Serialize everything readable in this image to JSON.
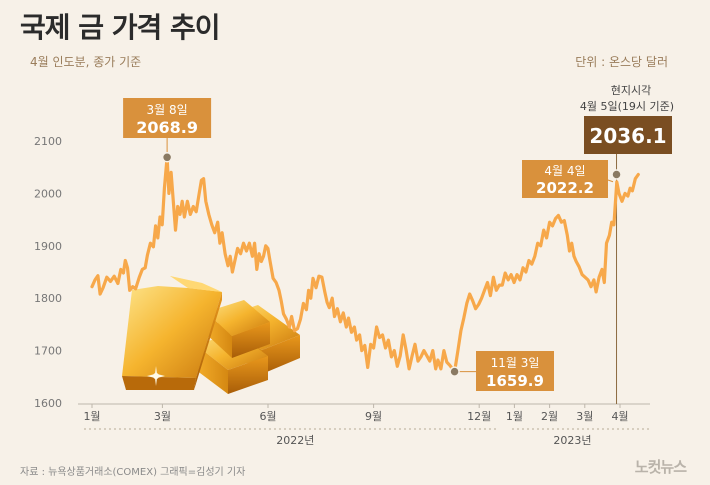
{
  "header": {
    "title": "국제 금 가격 추이",
    "subtitle": "4월 인도분, 종가 기준",
    "unit": "단위 : 온스당 달러"
  },
  "footer": {
    "source": "자료 : 뉴욕상품거래소(COMEX)   그래픽=김성기 기자",
    "logo": "노컷뉴스"
  },
  "colors": {
    "line": "#f7a84a",
    "annotation": "#d9913c",
    "annotation_dark": "#7a4e22",
    "grid": "#cfc8bd",
    "background": "#f7f1e8"
  },
  "chart_data": {
    "type": "line",
    "title": "국제 금 가격 추이",
    "ylim": [
      1600,
      2100
    ],
    "yticks": [
      1600,
      1700,
      1800,
      1900,
      2000,
      2100
    ],
    "grid": false,
    "x_tick_labels": [
      {
        "label": "1월",
        "t": 0.0
      },
      {
        "label": "3월",
        "t": 0.1905
      },
      {
        "label": "6월",
        "t": 0.4762
      },
      {
        "label": "9월",
        "t": 0.7619
      },
      {
        "label": "12월",
        "t": 1.0476
      },
      {
        "label": "1월",
        "t": 1.1429
      },
      {
        "label": "2월",
        "t": 1.2381
      },
      {
        "label": "3월",
        "t": 1.3333
      },
      {
        "label": "4월",
        "t": 1.4286
      }
    ],
    "year_labels": [
      {
        "label": "2022년",
        "t": 0.55
      },
      {
        "label": "2023년",
        "t": 1.3
      }
    ],
    "annotations": [
      {
        "label": "3월 8일",
        "value": "2068.9",
        "t": 0.2032,
        "y": 2068.9,
        "style": "above"
      },
      {
        "label": "11월 3일",
        "value": "1659.9",
        "t": 0.981,
        "y": 1659.9,
        "style": "below"
      },
      {
        "label": "4월 4일",
        "value": "2022.2",
        "t": 1.4205,
        "y": 2022.2,
        "style": "left"
      },
      {
        "label": "현지시각",
        "label2": "4월 5일(19시 기준)",
        "value": "2036.1",
        "t": 1.43,
        "y": 2036.1,
        "style": "top-right"
      }
    ],
    "series": [
      {
        "values": [
          [
            0.0,
            1822
          ],
          [
            0.008,
            1835
          ],
          [
            0.016,
            1843
          ],
          [
            0.022,
            1808
          ],
          [
            0.03,
            1820
          ],
          [
            0.04,
            1840
          ],
          [
            0.05,
            1832
          ],
          [
            0.06,
            1842
          ],
          [
            0.07,
            1828
          ],
          [
            0.078,
            1855
          ],
          [
            0.085,
            1848
          ],
          [
            0.09,
            1872
          ],
          [
            0.096,
            1858
          ],
          [
            0.102,
            1815
          ],
          [
            0.11,
            1822
          ],
          [
            0.118,
            1818
          ],
          [
            0.128,
            1840
          ],
          [
            0.136,
            1855
          ],
          [
            0.144,
            1858
          ],
          [
            0.15,
            1882
          ],
          [
            0.158,
            1905
          ],
          [
            0.166,
            1898
          ],
          [
            0.172,
            1938
          ],
          [
            0.178,
            1915
          ],
          [
            0.184,
            1955
          ],
          [
            0.19,
            1940
          ],
          [
            0.196,
            2010
          ],
          [
            0.2032,
            2069
          ],
          [
            0.208,
            2000
          ],
          [
            0.214,
            2040
          ],
          [
            0.22,
            1985
          ],
          [
            0.226,
            1930
          ],
          [
            0.232,
            1975
          ],
          [
            0.238,
            1960
          ],
          [
            0.244,
            1985
          ],
          [
            0.25,
            1955
          ],
          [
            0.258,
            1985
          ],
          [
            0.266,
            1960
          ],
          [
            0.274,
            1975
          ],
          [
            0.282,
            1965
          ],
          [
            0.29,
            2000
          ],
          [
            0.296,
            2025
          ],
          [
            0.302,
            2028
          ],
          [
            0.308,
            1985
          ],
          [
            0.316,
            1960
          ],
          [
            0.324,
            1940
          ],
          [
            0.332,
            1925
          ],
          [
            0.34,
            1945
          ],
          [
            0.346,
            1905
          ],
          [
            0.352,
            1925
          ],
          [
            0.36,
            1885
          ],
          [
            0.368,
            1862
          ],
          [
            0.374,
            1880
          ],
          [
            0.38,
            1850
          ],
          [
            0.386,
            1870
          ],
          [
            0.394,
            1895
          ],
          [
            0.402,
            1885
          ],
          [
            0.41,
            1905
          ],
          [
            0.418,
            1890
          ],
          [
            0.426,
            1905
          ],
          [
            0.434,
            1880
          ],
          [
            0.44,
            1905
          ],
          [
            0.446,
            1855
          ],
          [
            0.452,
            1885
          ],
          [
            0.458,
            1870
          ],
          [
            0.464,
            1880
          ],
          [
            0.47,
            1900
          ],
          [
            0.476,
            1895
          ],
          [
            0.482,
            1870
          ],
          [
            0.49,
            1838
          ],
          [
            0.498,
            1830
          ],
          [
            0.506,
            1815
          ],
          [
            0.512,
            1795
          ],
          [
            0.518,
            1770
          ],
          [
            0.526,
            1760
          ],
          [
            0.534,
            1745
          ],
          [
            0.54,
            1765
          ],
          [
            0.548,
            1738
          ],
          [
            0.556,
            1742
          ],
          [
            0.564,
            1760
          ],
          [
            0.572,
            1790
          ],
          [
            0.58,
            1778
          ],
          [
            0.586,
            1815
          ],
          [
            0.592,
            1800
          ],
          [
            0.598,
            1838
          ],
          [
            0.606,
            1820
          ],
          [
            0.614,
            1842
          ],
          [
            0.622,
            1840
          ],
          [
            0.63,
            1812
          ],
          [
            0.636,
            1792
          ],
          [
            0.642,
            1782
          ],
          [
            0.65,
            1800
          ],
          [
            0.656,
            1765
          ],
          [
            0.664,
            1780
          ],
          [
            0.672,
            1755
          ],
          [
            0.68,
            1772
          ],
          [
            0.688,
            1745
          ],
          [
            0.694,
            1762
          ],
          [
            0.702,
            1735
          ],
          [
            0.71,
            1745
          ],
          [
            0.716,
            1720
          ],
          [
            0.724,
            1730
          ],
          [
            0.73,
            1700
          ],
          [
            0.738,
            1710
          ],
          [
            0.746,
            1668
          ],
          [
            0.754,
            1712
          ],
          [
            0.762,
            1705
          ],
          [
            0.77,
            1745
          ],
          [
            0.778,
            1725
          ],
          [
            0.786,
            1730
          ],
          [
            0.794,
            1705
          ],
          [
            0.802,
            1720
          ],
          [
            0.81,
            1688
          ],
          [
            0.818,
            1700
          ],
          [
            0.826,
            1670
          ],
          [
            0.834,
            1690
          ],
          [
            0.842,
            1730
          ],
          [
            0.85,
            1700
          ],
          [
            0.858,
            1665
          ],
          [
            0.866,
            1690
          ],
          [
            0.874,
            1712
          ],
          [
            0.882,
            1680
          ],
          [
            0.89,
            1688
          ],
          [
            0.898,
            1700
          ],
          [
            0.906,
            1690
          ],
          [
            0.914,
            1680
          ],
          [
            0.922,
            1700
          ],
          [
            0.93,
            1665
          ],
          [
            0.936,
            1682
          ],
          [
            0.944,
            1665
          ],
          [
            0.952,
            1700
          ],
          [
            0.96,
            1678
          ],
          [
            0.968,
            1672
          ],
          [
            0.981,
            1660
          ],
          [
            0.99,
            1700
          ],
          [
            0.998,
            1738
          ],
          [
            1.006,
            1762
          ],
          [
            1.014,
            1790
          ],
          [
            1.022,
            1808
          ],
          [
            1.03,
            1795
          ],
          [
            1.038,
            1780
          ],
          [
            1.046,
            1788
          ],
          [
            1.054,
            1800
          ],
          [
            1.062,
            1815
          ],
          [
            1.07,
            1830
          ],
          [
            1.078,
            1805
          ],
          [
            1.086,
            1840
          ],
          [
            1.094,
            1815
          ],
          [
            1.102,
            1825
          ],
          [
            1.11,
            1825
          ],
          [
            1.118,
            1848
          ],
          [
            1.126,
            1835
          ],
          [
            1.134,
            1845
          ],
          [
            1.142,
            1830
          ],
          [
            1.15,
            1845
          ],
          [
            1.158,
            1835
          ],
          [
            1.166,
            1858
          ],
          [
            1.174,
            1850
          ],
          [
            1.182,
            1872
          ],
          [
            1.19,
            1865
          ],
          [
            1.198,
            1880
          ],
          [
            1.206,
            1905
          ],
          [
            1.214,
            1900
          ],
          [
            1.222,
            1930
          ],
          [
            1.23,
            1915
          ],
          [
            1.238,
            1945
          ],
          [
            1.246,
            1938
          ],
          [
            1.254,
            1952
          ],
          [
            1.262,
            1958
          ],
          [
            1.27,
            1945
          ],
          [
            1.278,
            1948
          ],
          [
            1.286,
            1920
          ],
          [
            1.292,
            1890
          ],
          [
            1.298,
            1905
          ],
          [
            1.304,
            1880
          ],
          [
            1.31,
            1870
          ],
          [
            1.318,
            1860
          ],
          [
            1.326,
            1845
          ],
          [
            1.334,
            1840
          ],
          [
            1.342,
            1835
          ],
          [
            1.35,
            1822
          ],
          [
            1.358,
            1835
          ],
          [
            1.364,
            1812
          ],
          [
            1.372,
            1840
          ],
          [
            1.38,
            1855
          ],
          [
            1.386,
            1830
          ],
          [
            1.392,
            1905
          ],
          [
            1.4,
            1920
          ],
          [
            1.406,
            1945
          ],
          [
            1.412,
            1940
          ],
          [
            1.42,
            2022
          ],
          [
            1.426,
            2000
          ],
          [
            1.434,
            1985
          ],
          [
            1.442,
            2000
          ],
          [
            1.45,
            1995
          ],
          [
            1.456,
            2010
          ],
          [
            1.462,
            2005
          ],
          [
            1.47,
            2028
          ],
          [
            1.478,
            2036
          ]
        ]
      }
    ]
  }
}
